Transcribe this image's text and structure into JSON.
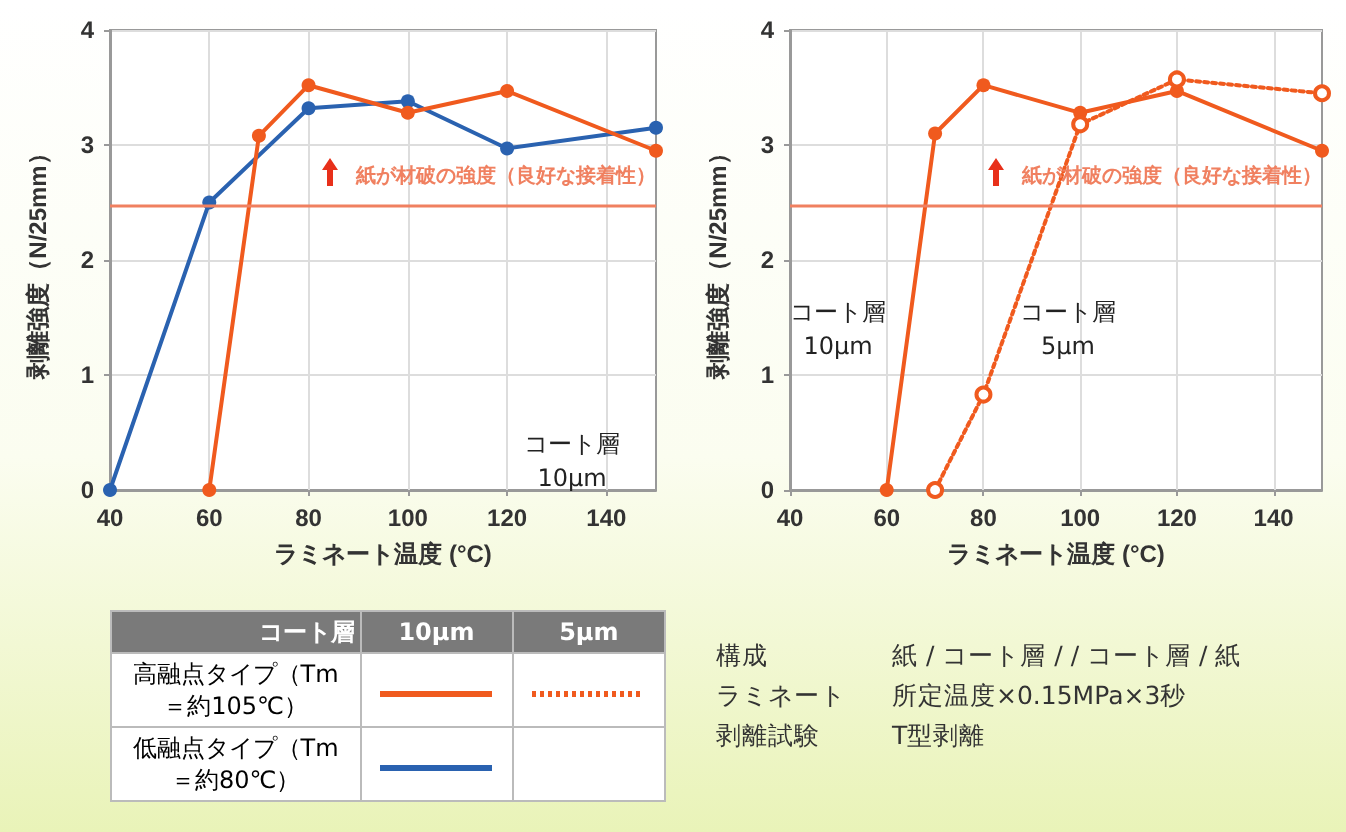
{
  "chart_data": [
    {
      "type": "line",
      "xlabel": "ラミネート温度 (°C)",
      "ylabel": "剥離強度（N/25mm）",
      "xlim": [
        40,
        150
      ],
      "xticks": [
        40,
        60,
        80,
        100,
        120,
        140
      ],
      "ylim": [
        0,
        4
      ],
      "yticks": [
        0,
        1,
        2,
        3,
        4
      ],
      "grid": true,
      "marker": "circle",
      "series": [
        {
          "color": "#2a62b0",
          "x": [
            40,
            60,
            80,
            100,
            120,
            150
          ],
          "values": [
            0,
            2.5,
            3.32,
            3.38,
            2.97,
            3.15
          ]
        },
        {
          "color": "#f05a1e",
          "x": [
            60,
            70,
            80,
            100,
            120,
            150
          ],
          "values": [
            0,
            3.08,
            3.52,
            3.28,
            3.47,
            2.95
          ]
        }
      ],
      "ref_lines": [
        {
          "axis": "y",
          "value": 2.48,
          "label": "紙が材破の強度（良好な接着性）",
          "color": "#f08060"
        }
      ],
      "annotations": [
        "コート層10μm"
      ]
    },
    {
      "type": "line",
      "xlabel": "ラミネート温度 (°C)",
      "ylabel": "剥離強度（N/25mm）",
      "xlim": [
        40,
        150
      ],
      "xticks": [
        40,
        60,
        80,
        100,
        120,
        140
      ],
      "ylim": [
        0,
        4
      ],
      "yticks": [
        0,
        1,
        2,
        3,
        4
      ],
      "grid": true,
      "marker": "circle",
      "series": [
        {
          "color": "#f05a1e",
          "x": [
            60,
            70,
            80,
            100,
            120,
            150
          ],
          "values": [
            0,
            3.1,
            3.52,
            3.28,
            3.47,
            2.95
          ]
        },
        {
          "color": "#f05a1e",
          "line_style": "dotted",
          "x": [
            70,
            80,
            100,
            120,
            150
          ],
          "values": [
            0,
            0.83,
            3.18,
            3.57,
            3.45
          ]
        }
      ],
      "ref_lines": [
        {
          "axis": "y",
          "value": 2.48,
          "label": "紙が材破の強度（良好な接着性）",
          "color": "#f08060"
        }
      ],
      "annotations": [
        "コート層10μm",
        "コート層5μm"
      ]
    },
    {
      "type": "other",
      "annotations": [
        "コート層",
        "10μm",
        "5μm",
        "高融点タイプ（Tm＝約105℃）",
        "低融点タイプ（Tm＝約80℃）",
        "構成",
        "紙 / コート層 / / コート層 / 紙",
        "ラミネート",
        "所定温度×0.15MPa×3秒",
        "剥離試験",
        "T型剥離"
      ]
    }
  ]
}
